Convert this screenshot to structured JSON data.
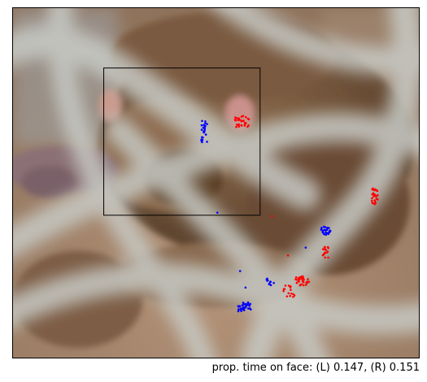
{
  "figure": {
    "caption": "prop. time on face: (L) 0.147, (R) 0.151",
    "scene": "photo-of-baby-monkey-seen-through-fence",
    "colors": {
      "left_eye_gaze": "#0000ff",
      "right_eye_gaze": "#ff0000",
      "face_box": "#000000"
    },
    "prop_time_on_face": {
      "left": 0.147,
      "right": 0.151
    }
  }
}
